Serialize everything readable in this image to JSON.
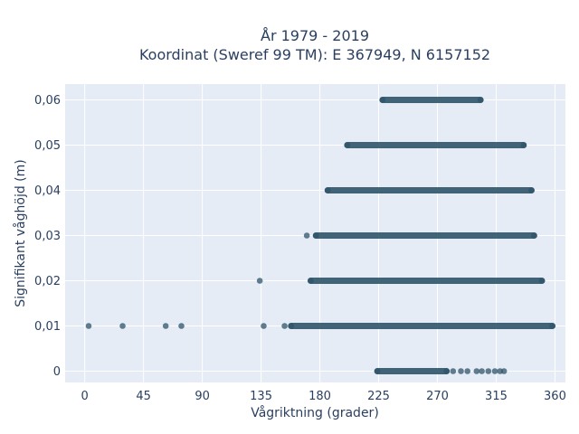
{
  "chart_data": {
    "type": "scatter",
    "title_line1": "År 1979 - 2019",
    "title_line2": "Koordinat (Sweref 99 TM): E 367949, N 6157152",
    "xlabel": "Vågriktning (grader)",
    "ylabel": "Signifikant våghöjd (m)",
    "xlim": [
      -15,
      368
    ],
    "ylim": [
      -0.0025,
      0.0635
    ],
    "xticks": [
      0,
      45,
      90,
      135,
      180,
      225,
      270,
      315,
      360
    ],
    "xtick_labels": [
      "0",
      "45",
      "90",
      "135",
      "180",
      "225",
      "270",
      "315",
      "360"
    ],
    "yticks": [
      0,
      0.01,
      0.02,
      0.03,
      0.04,
      0.05,
      0.06
    ],
    "ytick_labels": [
      "0",
      "0,01",
      "0,02",
      "0,03",
      "0,04",
      "0,05",
      "0,06"
    ],
    "grid": true,
    "marker_color": "#2f5469",
    "background_color": "#e5ecf6",
    "bands": [
      {
        "y": 0.06,
        "x_from": 228,
        "x_to": 303
      },
      {
        "y": 0.05,
        "x_from": 201,
        "x_to": 336
      },
      {
        "y": 0.04,
        "x_from": 186,
        "x_to": 342
      },
      {
        "y": 0.03,
        "x_from": 177,
        "x_to": 344
      },
      {
        "y": 0.02,
        "x_from": 173,
        "x_to": 350
      },
      {
        "y": 0.01,
        "x_from": 158,
        "x_to": 358
      },
      {
        "y": 0.0,
        "x_from": 224,
        "x_to": 277
      }
    ],
    "isolated_points": [
      {
        "x": 3,
        "y": 0.01
      },
      {
        "x": 29,
        "y": 0.01
      },
      {
        "x": 62,
        "y": 0.01
      },
      {
        "x": 74,
        "y": 0.01
      },
      {
        "x": 137,
        "y": 0.01
      },
      {
        "x": 153,
        "y": 0.01
      },
      {
        "x": 134,
        "y": 0.02
      },
      {
        "x": 170,
        "y": 0.03
      },
      {
        "x": 282,
        "y": 0.0
      },
      {
        "x": 288,
        "y": 0.0
      },
      {
        "x": 293,
        "y": 0.0
      },
      {
        "x": 300,
        "y": 0.0
      },
      {
        "x": 304,
        "y": 0.0
      },
      {
        "x": 309,
        "y": 0.0
      },
      {
        "x": 314,
        "y": 0.0
      },
      {
        "x": 318,
        "y": 0.0
      },
      {
        "x": 321,
        "y": 0.0
      }
    ]
  }
}
